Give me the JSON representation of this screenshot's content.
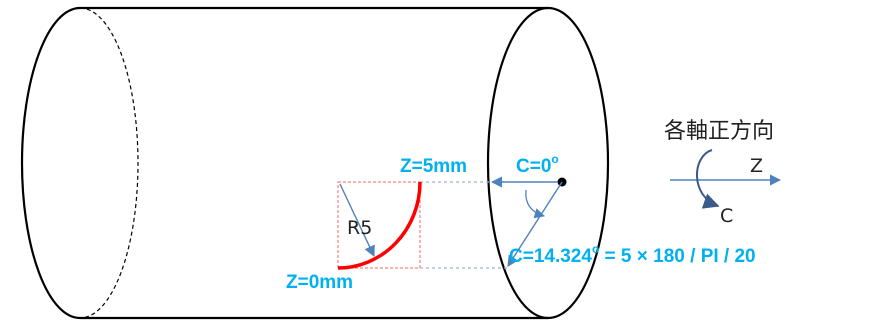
{
  "labels": {
    "z_top": "Z=5mm",
    "z_bottom": "Z=0mm",
    "c_zero_main": "C=0",
    "c_zero_deg": "o",
    "c_formula_pre": "C=14.324",
    "c_formula_deg": "o",
    "c_formula_post": " = 5 × 180 / PI / 20",
    "radius": "R5"
  },
  "legend": {
    "title": "各軸正方向",
    "z_axis": "Z",
    "c_axis": "C"
  },
  "colors": {
    "outline": "#000000",
    "accent_blue": "#00b0f0",
    "arrow_blue": "#4f81bd",
    "arc_red": "#ff0000",
    "dashed_red": "#ff6666",
    "text_dark": "#222222"
  }
}
